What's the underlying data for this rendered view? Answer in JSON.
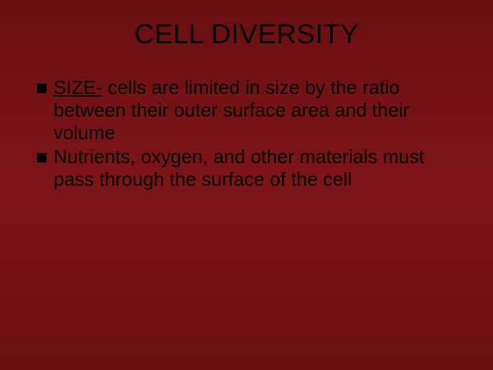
{
  "slide": {
    "title": "CELL DIVERSITY",
    "background_gradient": [
      "#6a0f12",
      "#7d1518",
      "#6a0f12"
    ],
    "title_color": "#000000",
    "title_fontsize": 40,
    "body_text_color": "#000000",
    "body_fontsize": 28,
    "bullet_marker_color": "#000000",
    "bullet_marker_size": 14,
    "bullets": [
      {
        "lead": "SIZE-",
        "lead_underline": true,
        "text": "  cells are limited in size by the ratio between their outer surface area and their volume"
      },
      {
        "lead": "",
        "lead_underline": false,
        "text": "Nutrients, oxygen, and other materials must pass through the surface of the cell"
      }
    ]
  }
}
